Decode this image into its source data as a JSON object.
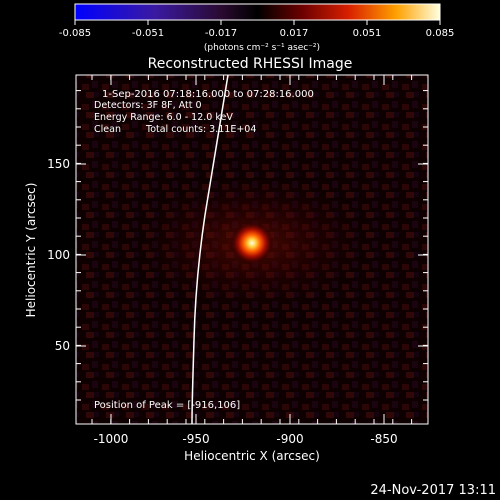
{
  "colorbar": {
    "tick_labels": [
      "-0.085",
      "-0.051",
      "-0.017",
      "0.017",
      "0.051",
      "0.085"
    ],
    "min": -0.085,
    "max": 0.085,
    "units": "(photons cm⁻² s⁻¹ asec⁻²)"
  },
  "plot": {
    "title": "Reconstructed RHESSI Image",
    "xlabel": "Heliocentric X (arcsec)",
    "ylabel": "Heliocentric Y (arcsec)",
    "x_ticks": [
      "-1000",
      "-950",
      "-900",
      "-850"
    ],
    "y_ticks": [
      "50",
      "100",
      "150"
    ],
    "xlim": [
      -1010,
      -820
    ],
    "ylim": [
      5,
      195
    ]
  },
  "info": {
    "time_range": "1-Sep-2016 07:18:16.000 to 07:28:16.000",
    "detectors": "Detectors: 3F 8F, Att 0",
    "energy": "Energy Range: 6.0 - 12.0 keV",
    "clean": "Clean",
    "counts": "Total counts: 3.11E+04",
    "peak": "Position of Peak = [-916,106]"
  },
  "source": {
    "x": -916,
    "y": 106
  },
  "timestamp": "24-Nov-2017 13:11"
}
